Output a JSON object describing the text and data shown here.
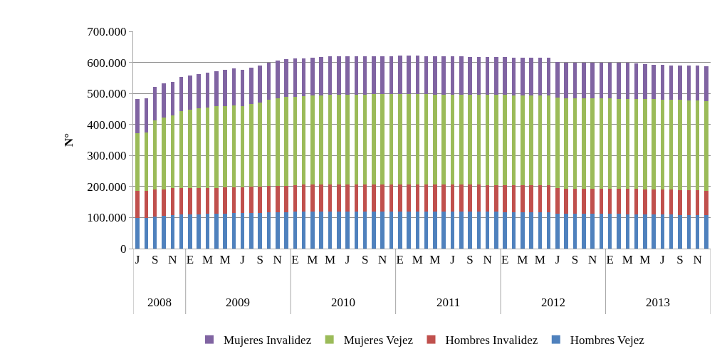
{
  "chart_data": {
    "type": "bar",
    "stacked": true,
    "ylabel": "N°",
    "categories": [
      "J",
      null,
      "S",
      null,
      "N",
      null,
      "E",
      null,
      "M",
      null,
      "M",
      null,
      "J",
      null,
      "S",
      null,
      "N",
      null,
      "E",
      null,
      "M",
      null,
      "M",
      null,
      "J",
      null,
      "S",
      null,
      "N",
      null,
      "E",
      null,
      "M",
      null,
      "M",
      null,
      "J",
      null,
      "S",
      null,
      "N",
      null,
      "E",
      null,
      "M",
      null,
      "M",
      null,
      "J",
      null,
      "S",
      null,
      "N",
      null,
      "E",
      null,
      "M",
      null,
      "M",
      null,
      "J",
      null,
      "S",
      null,
      "N",
      null
    ],
    "annotations": [
      "2008",
      "2009",
      "2010",
      "2011",
      "2012",
      "2013"
    ],
    "series": [
      {
        "name": "Hombres Vejez",
        "color": "#4f81bd",
        "values": [
          99000,
          99000,
          103000,
          106000,
          108000,
          110000,
          110000,
          111000,
          112000,
          113000,
          113000,
          114000,
          114000,
          115000,
          115000,
          116000,
          117000,
          118000,
          119000,
          119000,
          119000,
          120000,
          120000,
          120000,
          120000,
          120000,
          120000,
          120000,
          120000,
          120000,
          120000,
          120000,
          120000,
          120000,
          119000,
          119000,
          119000,
          119000,
          119000,
          119000,
          119000,
          119000,
          118000,
          118000,
          118000,
          118000,
          118000,
          118000,
          112000,
          112000,
          112000,
          112000,
          112000,
          112000,
          112000,
          112000,
          111000,
          111000,
          111000,
          111000,
          110000,
          110000,
          109000,
          109000,
          109000,
          108000
        ]
      },
      {
        "name": "Hombres Invalidez",
        "color": "#c0504d",
        "values": [
          86000,
          86000,
          87000,
          85000,
          86000,
          85000,
          85000,
          85000,
          84000,
          83000,
          85000,
          84000,
          84000,
          84000,
          85000,
          85000,
          86000,
          85000,
          86000,
          87000,
          87000,
          87000,
          87000,
          87000,
          87000,
          87000,
          87000,
          87000,
          87000,
          87000,
          87000,
          87000,
          87000,
          87000,
          88000,
          87000,
          87000,
          87000,
          87000,
          87000,
          86000,
          86000,
          87000,
          87000,
          87000,
          87000,
          87000,
          87000,
          82000,
          81000,
          81000,
          81000,
          81000,
          81000,
          81000,
          81000,
          81000,
          81000,
          80000,
          80000,
          80000,
          80000,
          80000,
          80000,
          79000,
          79000
        ]
      },
      {
        "name": "Mujeres Vejez",
        "color": "#9bbb59",
        "values": [
          187000,
          190000,
          222000,
          231000,
          236000,
          247000,
          253000,
          256000,
          259000,
          262000,
          262000,
          264000,
          260000,
          266000,
          270000,
          279000,
          282000,
          285000,
          285000,
          286000,
          287000,
          287000,
          288000,
          289000,
          289000,
          289000,
          289000,
          290000,
          290000,
          290000,
          290000,
          290000,
          290000,
          290000,
          289000,
          290000,
          290000,
          290000,
          289000,
          289000,
          290000,
          290000,
          290000,
          289000,
          289000,
          289000,
          289000,
          289000,
          292000,
          291000,
          291000,
          291000,
          291000,
          291000,
          291000,
          290000,
          291000,
          290000,
          291000,
          290000,
          290000,
          290000,
          290000,
          289000,
          289000,
          289000
        ]
      },
      {
        "name": "Mujeres Invalidez",
        "color": "#8064a2",
        "values": [
          111000,
          109000,
          108000,
          110000,
          108000,
          110000,
          109000,
          110000,
          112000,
          114000,
          117000,
          118000,
          117000,
          117000,
          120000,
          120000,
          120000,
          122000,
          122000,
          121000,
          123000,
          123000,
          125000,
          124000,
          124000,
          124000,
          124000,
          123000,
          123000,
          123000,
          125000,
          124000,
          125000,
          123000,
          123000,
          124000,
          123000,
          123000,
          123000,
          122000,
          123000,
          122000,
          122000,
          122000,
          122000,
          121000,
          120000,
          120000,
          115000,
          116000,
          116000,
          116000,
          116000,
          116000,
          116000,
          117000,
          115000,
          115000,
          112000,
          112000,
          111000,
          110000,
          110000,
          111000,
          112000,
          112000
        ]
      }
    ],
    "ylim": [
      0,
      700000
    ],
    "yticks": [
      {
        "value": 0,
        "label": "0"
      },
      {
        "value": 100000,
        "label": "100.000"
      },
      {
        "value": 200000,
        "label": "200.000"
      },
      {
        "value": 300000,
        "label": "300.000"
      },
      {
        "value": 400000,
        "label": "400.000"
      },
      {
        "value": 500000,
        "label": "500.000"
      },
      {
        "value": 600000,
        "label": "600.000"
      },
      {
        "value": 700000,
        "label": "700.000"
      }
    ],
    "grid": "y",
    "legend": "bottom"
  }
}
